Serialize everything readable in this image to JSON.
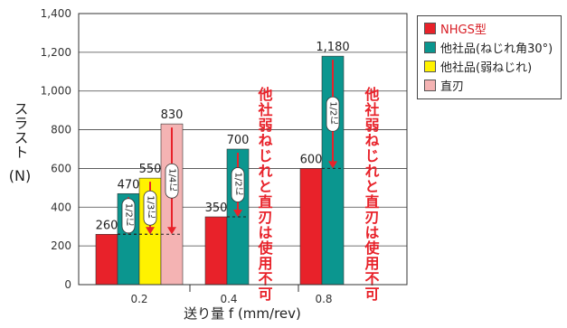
{
  "chart_data": {
    "type": "bar",
    "categories": [
      "0.2",
      "0.4",
      "0.8"
    ],
    "series": [
      {
        "name": "NHGS型",
        "color": "#e8222a",
        "values": [
          260,
          350,
          600
        ]
      },
      {
        "name": "他社品(ねじれ角30°)",
        "color": "#0b968f",
        "values": [
          470,
          700,
          1180
        ]
      },
      {
        "name": "他社品(弱ねじれ)",
        "color": "#fff200",
        "values": [
          550,
          null,
          null
        ]
      },
      {
        "name": "直刃",
        "color": "#f4b3b3",
        "values": [
          830,
          null,
          null
        ]
      }
    ],
    "data_labels": [
      [
        "260",
        "350",
        "600"
      ],
      [
        "470",
        "700",
        "1,180"
      ],
      [
        "550",
        "",
        ""
      ],
      [
        "830",
        "",
        ""
      ]
    ],
    "yticks": [
      "0",
      "200",
      "400",
      "600",
      "800",
      "1,000",
      "1,200",
      "1,400"
    ],
    "ylim": [
      0,
      1400
    ],
    "ylabel": [
      "スラスト",
      "(N)"
    ],
    "xlabel": "送り量 f (mm/rev)",
    "grid": true,
    "legend_position": "top-right",
    "annotations": {
      "ratios": [
        {
          "text": "1/2に",
          "category": "0.2",
          "series": 1,
          "from": 470,
          "to": 260
        },
        {
          "text": "1/3に",
          "category": "0.2",
          "series": 2,
          "from": 550,
          "to": 260
        },
        {
          "text": "1/4に",
          "category": "0.2",
          "series": 3,
          "from": 830,
          "to": 260
        },
        {
          "text": "1/2に",
          "category": "0.4",
          "series": 1,
          "from": 700,
          "to": 350
        },
        {
          "text": "1/2に",
          "category": "0.8",
          "series": 1,
          "from": 1180,
          "to": 600
        }
      ],
      "unusable_note": "他社弱ねじれと直刃は使用不可",
      "note_color": "#e8222a"
    }
  }
}
